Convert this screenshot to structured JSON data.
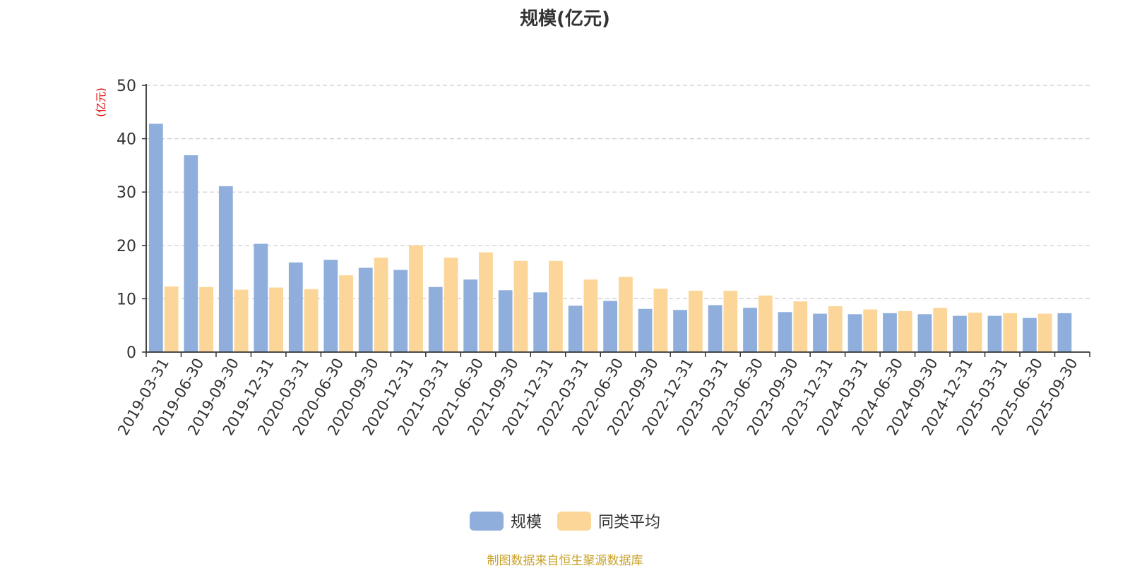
{
  "chart_data": {
    "type": "bar",
    "title": "规模(亿元)",
    "ylabel": "(亿元)",
    "ylim": [
      0,
      50
    ],
    "yticks": [
      0,
      10,
      20,
      30,
      40,
      50
    ],
    "grid": true,
    "legend_position": "bottom",
    "categories": [
      "2019-03-31",
      "2019-06-30",
      "2019-09-30",
      "2019-12-31",
      "2020-03-31",
      "2020-06-30",
      "2020-09-30",
      "2020-12-31",
      "2021-03-31",
      "2021-06-30",
      "2021-09-30",
      "2021-12-31",
      "2022-03-31",
      "2022-06-30",
      "2022-09-30",
      "2022-12-31",
      "2023-03-31",
      "2023-06-30",
      "2023-09-30",
      "2023-12-31",
      "2024-03-31",
      "2024-06-30",
      "2024-09-30",
      "2024-12-31",
      "2025-03-31",
      "2025-06-30",
      "2025-09-30"
    ],
    "series": [
      {
        "name": "规模",
        "color": "#8faedc",
        "values": [
          42.8,
          36.9,
          31.1,
          20.3,
          16.8,
          17.3,
          15.8,
          15.4,
          12.2,
          13.6,
          11.6,
          11.2,
          8.7,
          9.6,
          8.1,
          7.9,
          8.8,
          8.3,
          7.5,
          7.2,
          7.1,
          7.3,
          7.1,
          6.8,
          6.8,
          6.4,
          7.3
        ]
      },
      {
        "name": "同类平均",
        "color": "#fcd699",
        "values": [
          12.3,
          12.2,
          11.7,
          12.1,
          11.8,
          14.4,
          17.7,
          20.0,
          17.7,
          18.7,
          17.1,
          17.1,
          13.6,
          14.1,
          11.9,
          11.5,
          11.5,
          10.6,
          9.5,
          8.6,
          8.0,
          7.7,
          8.3,
          7.4,
          7.3,
          7.2,
          null
        ]
      }
    ]
  },
  "source_note": "制图数据来自恒生聚源数据库"
}
